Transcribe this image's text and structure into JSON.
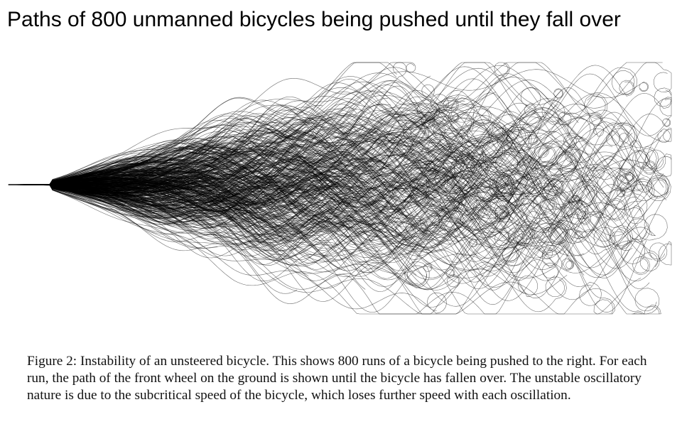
{
  "headline": "Paths of 800 unmanned bicycles being pushed until they fall over",
  "figure": {
    "caption_label": "Figure 2:",
    "caption_text": "Instability of an unsteered bicycle. This shows 800 runs of a bicycle being pushed to the right. For each run, the path of the front wheel on the ground is shown until the bicycle has fallen over. The unstable oscillatory nature is due to the subcritical speed of the bicycle, which loses further speed with each oscillation."
  },
  "colors": {
    "ink": "#000000",
    "background": "#ffffff"
  }
}
